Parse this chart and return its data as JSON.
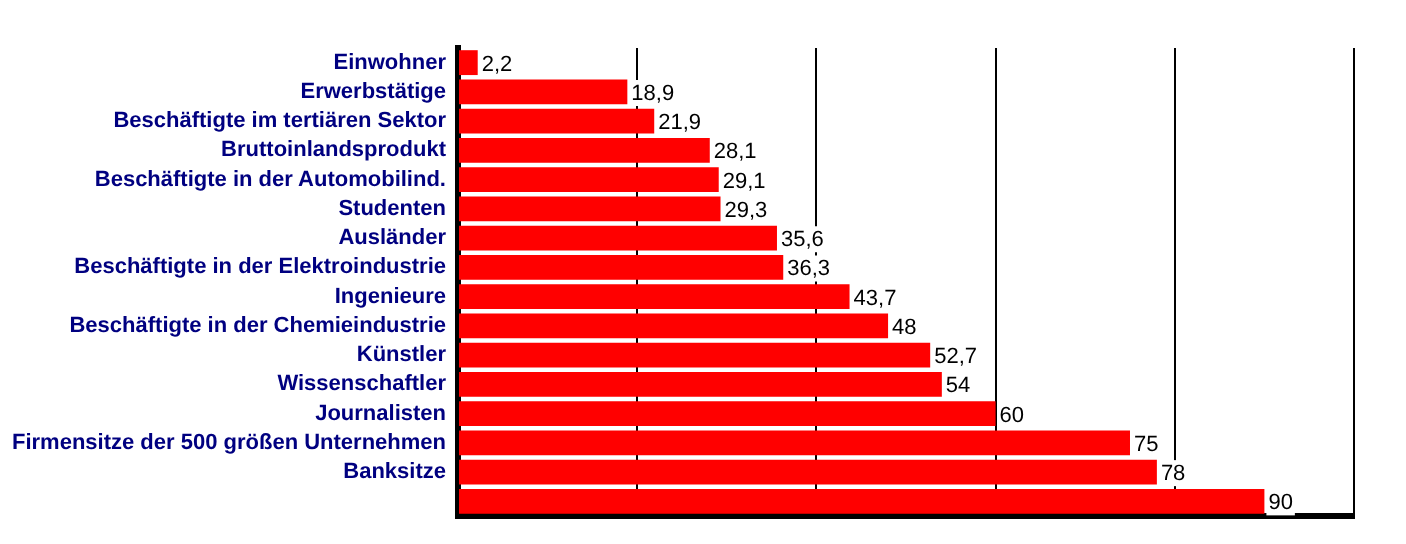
{
  "chart_data": {
    "type": "bar",
    "orientation": "horizontal",
    "categories": [
      "Einwohner",
      "Erwerbstätige",
      "Beschäftigte im tertiären Sektor",
      "Bruttoinlandsprodukt",
      "Beschäftigte in der Automobilind.",
      "Studenten",
      "Ausländer",
      "Beschäftigte in der Elektroindustrie",
      "Ingenieure",
      "Beschäftigte in der Chemieindustrie",
      "Künstler",
      "Wissenschaftler",
      "Journalisten",
      "Firmensitze der 500 größen Unternehmen",
      "Banksitze",
      null
    ],
    "values": [
      2.2,
      18.9,
      21.9,
      28.1,
      29.1,
      29.3,
      35.6,
      36.3,
      43.7,
      48,
      52.7,
      54,
      60,
      75,
      78,
      90
    ],
    "value_labels": [
      "2,2",
      "18,9",
      "21,9",
      "28,1",
      "29,1",
      "29,3",
      "35,6",
      "36,3",
      "43,7",
      "48",
      "52,7",
      "54",
      "60",
      "75",
      "78",
      "90"
    ],
    "color": "#ff0000",
    "xlim": [
      0,
      100
    ],
    "xticks": [
      {
        "value": 0,
        "label": null
      },
      {
        "value": 20,
        "label": null
      },
      {
        "value": 40,
        "label": null
      },
      {
        "value": 60,
        "label": null
      },
      {
        "value": 80,
        "label": null
      },
      {
        "value": 100,
        "label": null
      }
    ],
    "grid": "x",
    "tick_labels": "y"
  }
}
